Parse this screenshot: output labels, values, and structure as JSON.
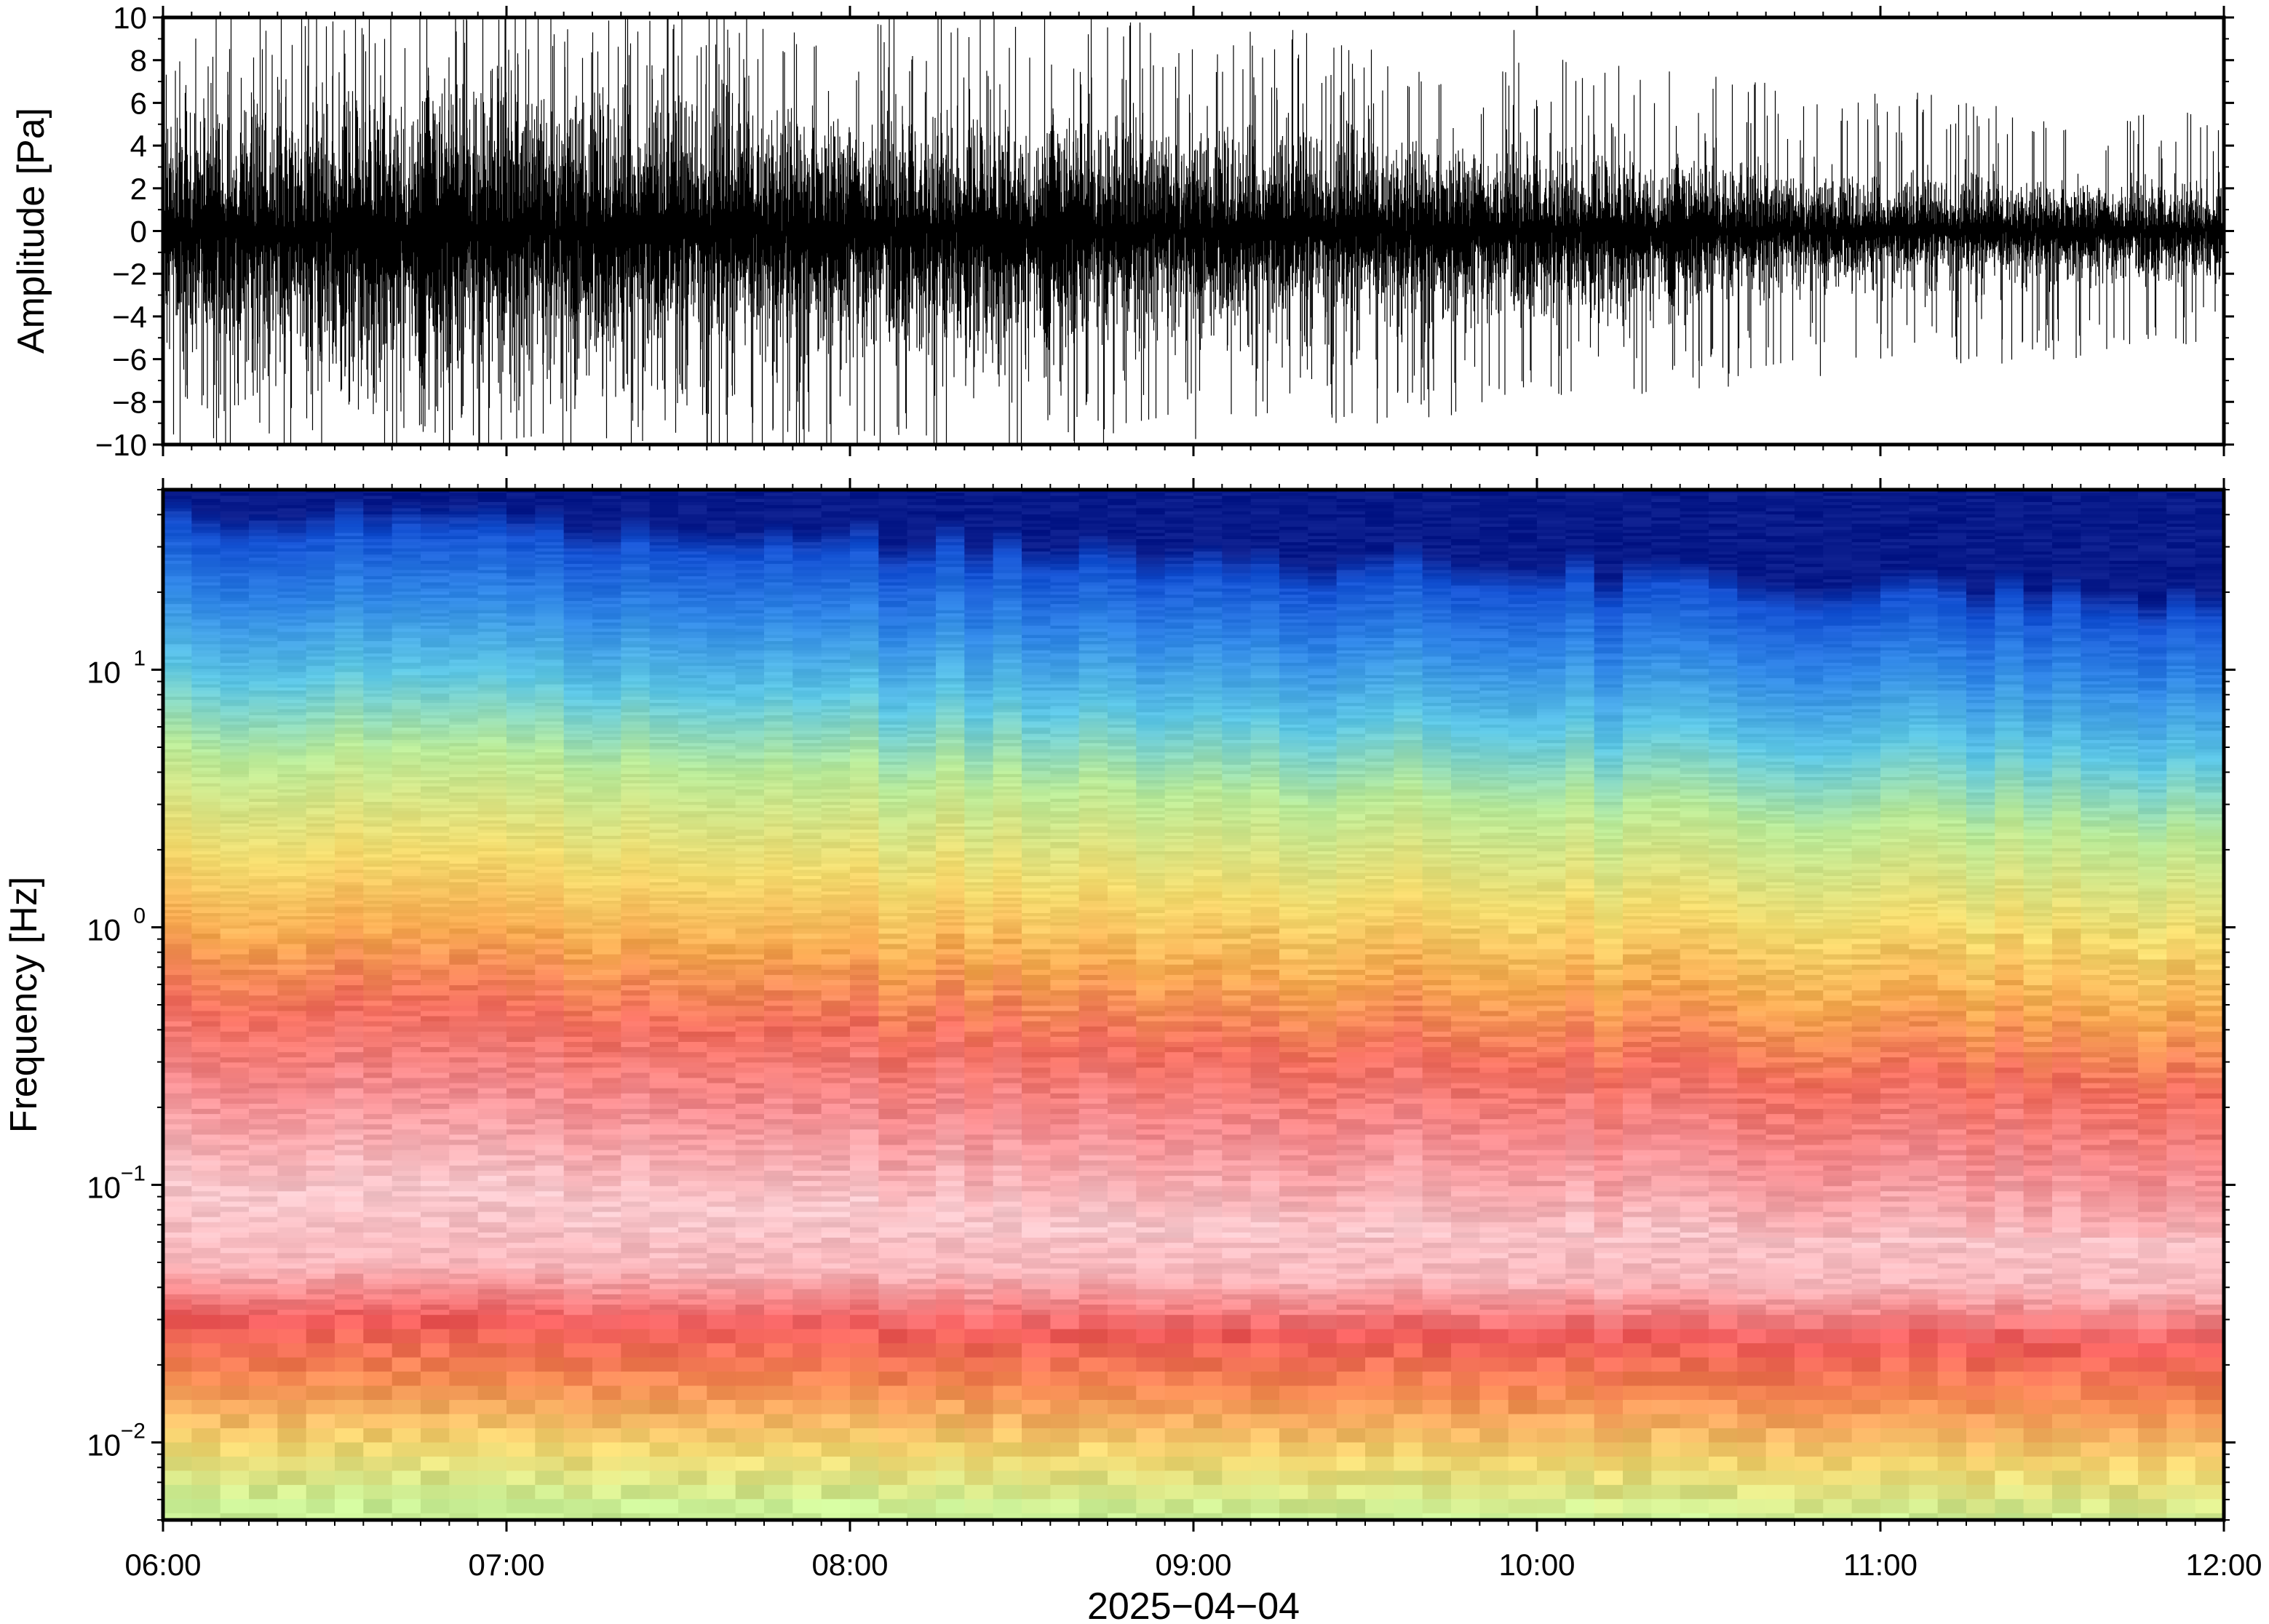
{
  "chart_data": [
    {
      "type": "line",
      "panel": "waveform",
      "ylabel": "Amplitude [Pa]",
      "ylim": [
        -10,
        10
      ],
      "yticks": [
        -10,
        -8,
        -6,
        -4,
        -2,
        0,
        2,
        4,
        6,
        8,
        10
      ],
      "ytick_labels": [
        "−10",
        "−8",
        "−6",
        "−4",
        "−2",
        "0",
        "2",
        "4",
        "6",
        "8",
        "10"
      ],
      "xlim": [
        "06:00",
        "12:00"
      ],
      "envelope": {
        "time": [
          "06:00",
          "07:00",
          "08:00",
          "09:00",
          "10:00",
          "11:00",
          "12:00"
        ],
        "typical_amplitude_pa": [
          5.5,
          6.5,
          5.0,
          4.5,
          3.5,
          2.2,
          2.0
        ],
        "peak_amplitude_pa": [
          10,
          10,
          10,
          9,
          7.5,
          6,
          5
        ]
      },
      "line_color": "#000000"
    },
    {
      "type": "heatmap",
      "panel": "spectrogram",
      "ylabel": "Frequency [Hz]",
      "yscale": "log",
      "ylim": [
        0.005,
        50
      ],
      "yticks": [
        0.01,
        0.1,
        1,
        10
      ],
      "ytick_labels": [
        {
          "base": "10",
          "exp": "−2"
        },
        {
          "base": "10",
          "exp": "−1"
        },
        {
          "base": "10",
          "exp": "0"
        },
        {
          "base": "10",
          "exp": "1"
        }
      ],
      "xlabel": "2025−04−04",
      "xticks": [
        "06:00",
        "07:00",
        "08:00",
        "09:00",
        "10:00",
        "11:00",
        "12:00"
      ],
      "xlim": [
        "06:00",
        "12:00"
      ],
      "colormap": [
        "#000080",
        "#0a3fd0",
        "#2f80e8",
        "#55b8ef",
        "#86e1c6",
        "#cff08a",
        "#f6de6e",
        "#f7a94f",
        "#f15a5a",
        "#f7aeb4",
        "#fbe0e4"
      ],
      "frequency_color_profile": [
        {
          "freq_hz": 45,
          "color": "#081a8a"
        },
        {
          "freq_hz": 35,
          "color": "#1452d4"
        },
        {
          "freq_hz": 20,
          "color": "#2f86e6"
        },
        {
          "freq_hz": 10,
          "color": "#5cc6e4"
        },
        {
          "freq_hz": 5,
          "color": "#b9ea98"
        },
        {
          "freq_hz": 2,
          "color": "#f4dc6e"
        },
        {
          "freq_hz": 1,
          "color": "#f7a850"
        },
        {
          "freq_hz": 0.5,
          "color": "#f26d5e"
        },
        {
          "freq_hz": 0.25,
          "color": "#f48a8e"
        },
        {
          "freq_hz": 0.1,
          "color": "#f9c8cd"
        },
        {
          "freq_hz": 0.05,
          "color": "#f9b7bc"
        },
        {
          "freq_hz": 0.03,
          "color": "#f05a5a"
        },
        {
          "freq_hz": 0.018,
          "color": "#f58a52"
        },
        {
          "freq_hz": 0.01,
          "color": "#f3d770"
        },
        {
          "freq_hz": 0.006,
          "color": "#c9ef95"
        }
      ]
    }
  ]
}
